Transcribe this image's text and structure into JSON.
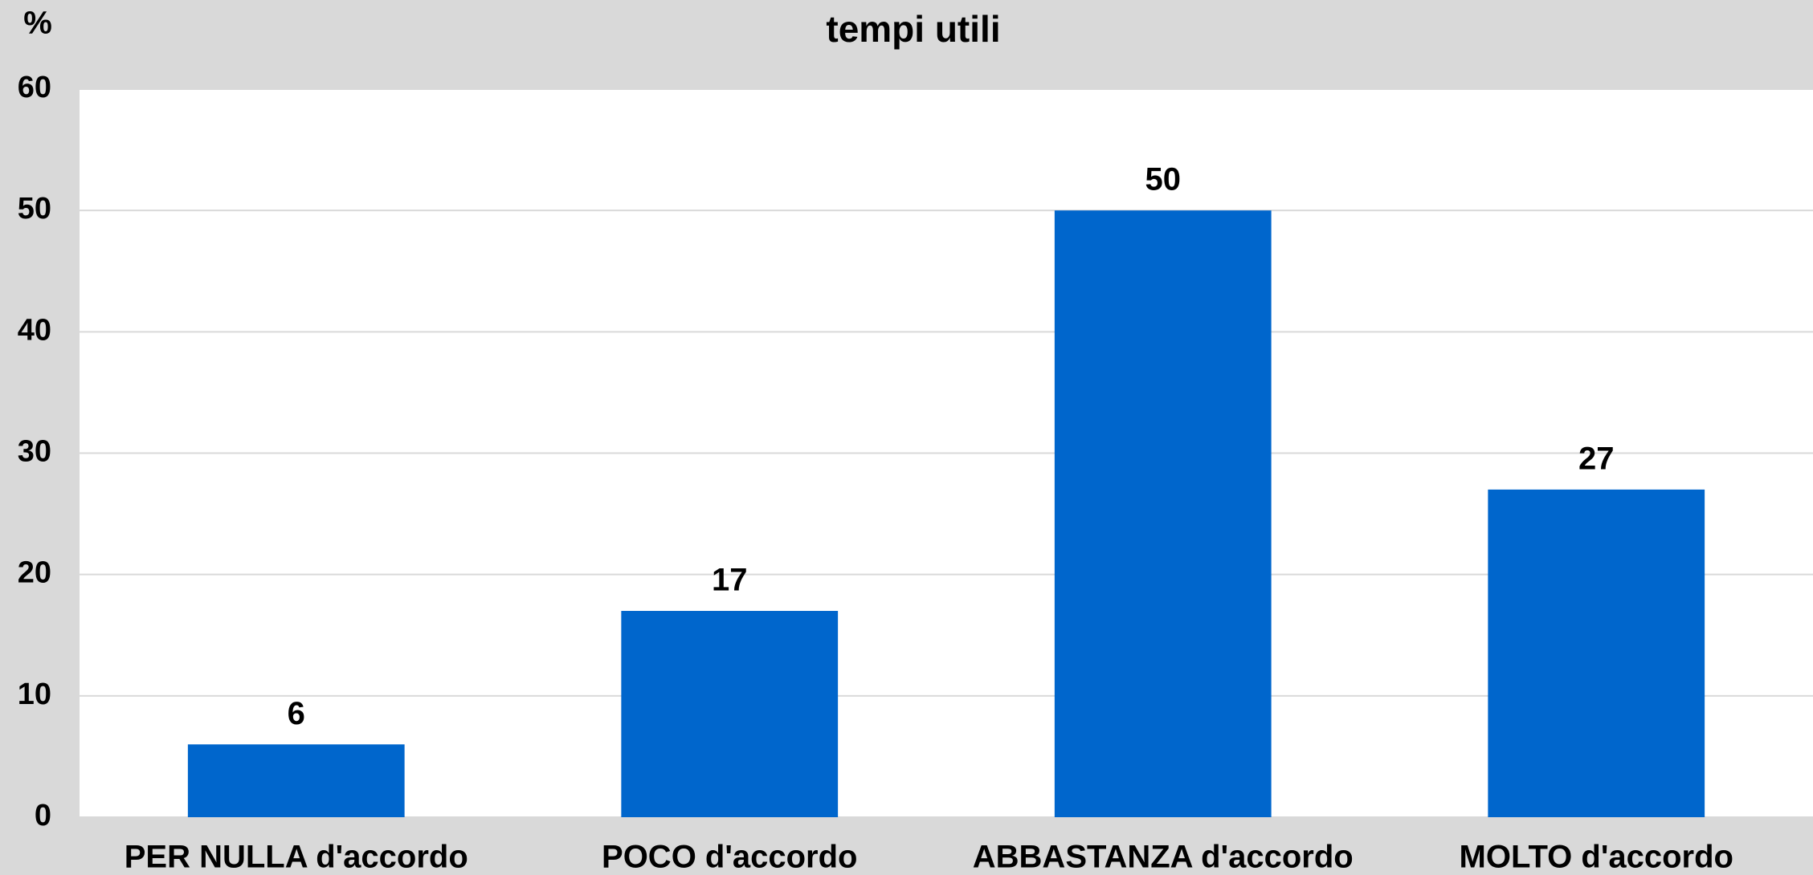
{
  "chart_data": {
    "type": "bar",
    "title": "tempi utili",
    "y_label": "%",
    "categories": [
      "PER NULLA d'accordo",
      "POCO d'accordo",
      "ABBASTANZA d'accordo",
      "MOLTO d'accordo"
    ],
    "values": [
      6,
      17,
      50,
      27
    ],
    "color": "#0066cc",
    "ylim": [
      0,
      60
    ],
    "yticks": [
      0,
      10,
      20,
      30,
      40,
      50,
      60
    ],
    "grid": true
  }
}
